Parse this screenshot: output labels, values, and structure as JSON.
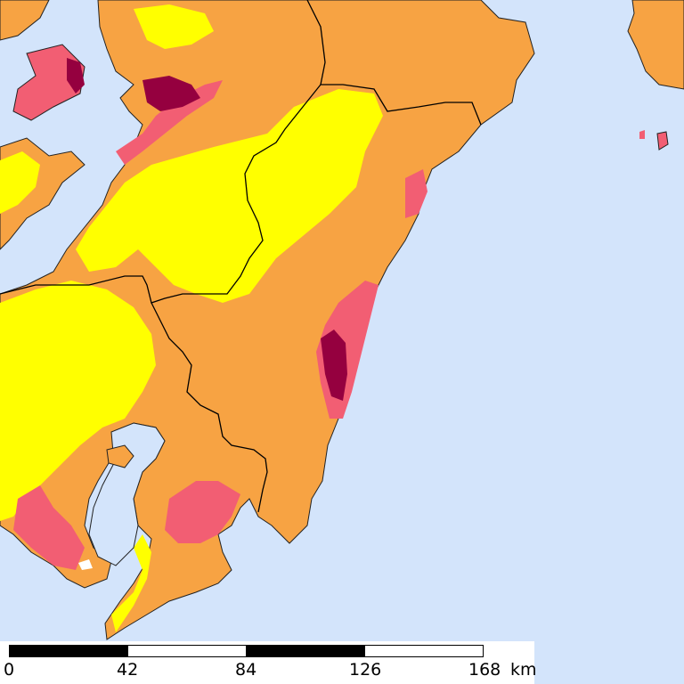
{
  "map": {
    "colors": {
      "sea": "#d3e4fb",
      "lowest": "#ffff00",
      "low": "#f7a343",
      "medium": "#f25e73",
      "high": "#95003f",
      "border": "#000000"
    }
  },
  "scale_bar": {
    "ticks": [
      "0",
      "42",
      "84",
      "126",
      "168"
    ],
    "unit": "km",
    "segment_colors": [
      "#000000",
      "#ffffff",
      "#000000",
      "#ffffff"
    ]
  }
}
